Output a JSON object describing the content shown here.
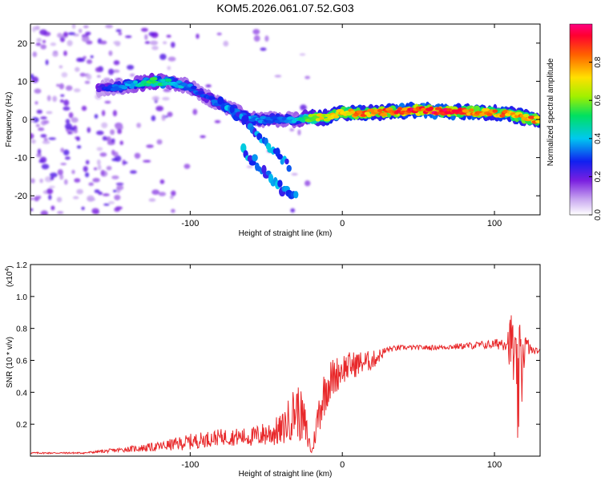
{
  "title": "KOM5.2026.061.07.52.G03",
  "chart_data": [
    {
      "type": "heatmap",
      "xlabel": "Height of straight line (km)",
      "ylabel": "Frequency (Hz)",
      "xlim": [
        -205,
        130
      ],
      "ylim": [
        -25,
        25
      ],
      "xticks": [
        -100,
        0,
        100
      ],
      "yticks": [
        -20,
        -10,
        0,
        10,
        20
      ],
      "xtick_labels": [
        "-100",
        "0",
        "100"
      ],
      "ytick_labels": [
        "-20",
        "-10",
        "0",
        "10",
        "20"
      ],
      "colorbar": {
        "label": "Normalized spectral amplitude",
        "range": [
          0,
          1
        ],
        "ticks": [
          0.0,
          0.2,
          0.4,
          0.6,
          0.8
        ],
        "tick_labels": [
          "0.0",
          "0.2",
          "0.4",
          "0.6",
          "0.8"
        ]
      },
      "ridge": {
        "x": [
          -160,
          -140,
          -125,
          -110,
          -100,
          -90,
          -80,
          -70,
          -60,
          -45,
          -30,
          -20,
          -10,
          0,
          10,
          30,
          50,
          70,
          90,
          105,
          115,
          125,
          130
        ],
        "freq": [
          8,
          9,
          10,
          9.5,
          8.5,
          6,
          4,
          2,
          0,
          0,
          0,
          0.5,
          0.5,
          2,
          1.5,
          2,
          2.5,
          2,
          2,
          1.5,
          1,
          0,
          0
        ],
        "amp": [
          0.25,
          0.4,
          0.55,
          0.45,
          0.35,
          0.3,
          0.35,
          0.35,
          0.4,
          0.35,
          0.4,
          0.7,
          0.75,
          0.8,
          0.85,
          0.9,
          1.0,
          0.95,
          0.9,
          0.85,
          0.8,
          0.85,
          0.8
        ]
      },
      "branches": [
        {
          "x": [
            -80,
            -60,
            -45,
            -35
          ],
          "freq": [
            4,
            -2,
            -8,
            -12
          ]
        },
        {
          "x": [
            -65,
            -50,
            -40,
            -30
          ],
          "freq": [
            -8,
            -14,
            -18,
            -20
          ]
        }
      ]
    },
    {
      "type": "line",
      "xlabel": "Height of straight line (km)",
      "ylabel": "SNR (10 * v/v)",
      "y_multiplier": "(x10",
      "y_multiplier_exp": "4",
      "y_multiplier_close": ")",
      "xlim": [
        -205,
        130
      ],
      "ylim": [
        0,
        1.2
      ],
      "xticks": [
        -100,
        0,
        100
      ],
      "yticks": [
        0.2,
        0.4,
        0.6,
        0.8,
        1.0,
        1.2
      ],
      "xtick_labels": [
        "-100",
        "0",
        "100"
      ],
      "ytick_labels": [
        "0.2",
        "0.4",
        "0.6",
        "0.8",
        "1.0",
        "1.2"
      ],
      "color": "#e8282a",
      "series": [
        {
          "name": "SNR",
          "x": [
            -205,
            -170,
            -145,
            -120,
            -100,
            -80,
            -60,
            -50,
            -40,
            -30,
            -25,
            -20,
            -15,
            -10,
            -5,
            0,
            10,
            20,
            30,
            40,
            60,
            80,
            100,
            108,
            112,
            115,
            118,
            120,
            125,
            130
          ],
          "y": [
            0.02,
            0.02,
            0.04,
            0.06,
            0.09,
            0.12,
            0.12,
            0.14,
            0.16,
            0.3,
            0.2,
            0.02,
            0.3,
            0.45,
            0.5,
            0.55,
            0.58,
            0.6,
            0.67,
            0.68,
            0.68,
            0.69,
            0.7,
            0.72,
            0.7,
            0.35,
            0.6,
            0.7,
            0.66,
            0.66
          ],
          "noise": [
            0.005,
            0.005,
            0.015,
            0.03,
            0.05,
            0.05,
            0.06,
            0.08,
            0.1,
            0.18,
            0.15,
            0.02,
            0.15,
            0.15,
            0.12,
            0.1,
            0.08,
            0.06,
            0.02,
            0.015,
            0.015,
            0.02,
            0.03,
            0.06,
            0.25,
            0.35,
            0.35,
            0.08,
            0.02,
            0.02
          ]
        }
      ]
    }
  ]
}
